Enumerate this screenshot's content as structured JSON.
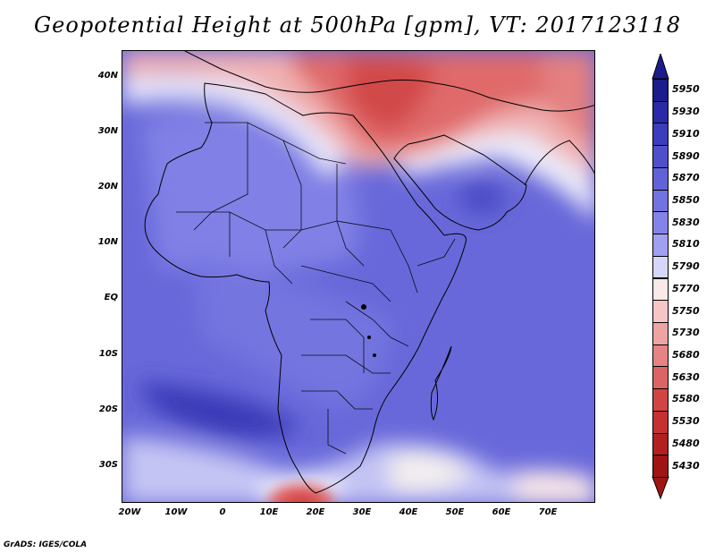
{
  "title": "Geopotential Height at 500hPa [gpm], VT: 2017123118",
  "credit": "GrADS: IGES/COLA",
  "map": {
    "region": "Africa",
    "variable": "Geopotential Height",
    "level": "500hPa",
    "units": "gpm",
    "valid_time": "2017123118",
    "lat_ticks": [
      "40N",
      "30N",
      "20N",
      "10N",
      "EQ",
      "10S",
      "20S",
      "30S"
    ],
    "lon_ticks": [
      "20W",
      "10W",
      "0",
      "10E",
      "20E",
      "30E",
      "40E",
      "50E",
      "60E",
      "70E"
    ]
  },
  "colorbar": {
    "levels": [
      "5950",
      "5930",
      "5910",
      "5890",
      "5870",
      "5850",
      "5830",
      "5810",
      "5790",
      "5770",
      "5750",
      "5730",
      "5680",
      "5630",
      "5580",
      "5530",
      "5480",
      "5430"
    ],
    "colors": [
      "#1c1c8c",
      "#2a2aa8",
      "#3c3cbc",
      "#4f4fcc",
      "#6262d8",
      "#7272e0",
      "#8484e8",
      "#a0a0f0",
      "#d6d6fa",
      "#fbe8e8",
      "#f6c6c6",
      "#efa4a4",
      "#e68484",
      "#dc6464",
      "#d24444",
      "#c63030",
      "#b42020",
      "#a01414"
    ],
    "top_arrow_color": "#1c1c8c",
    "bottom_arrow_color": "#a01414"
  }
}
